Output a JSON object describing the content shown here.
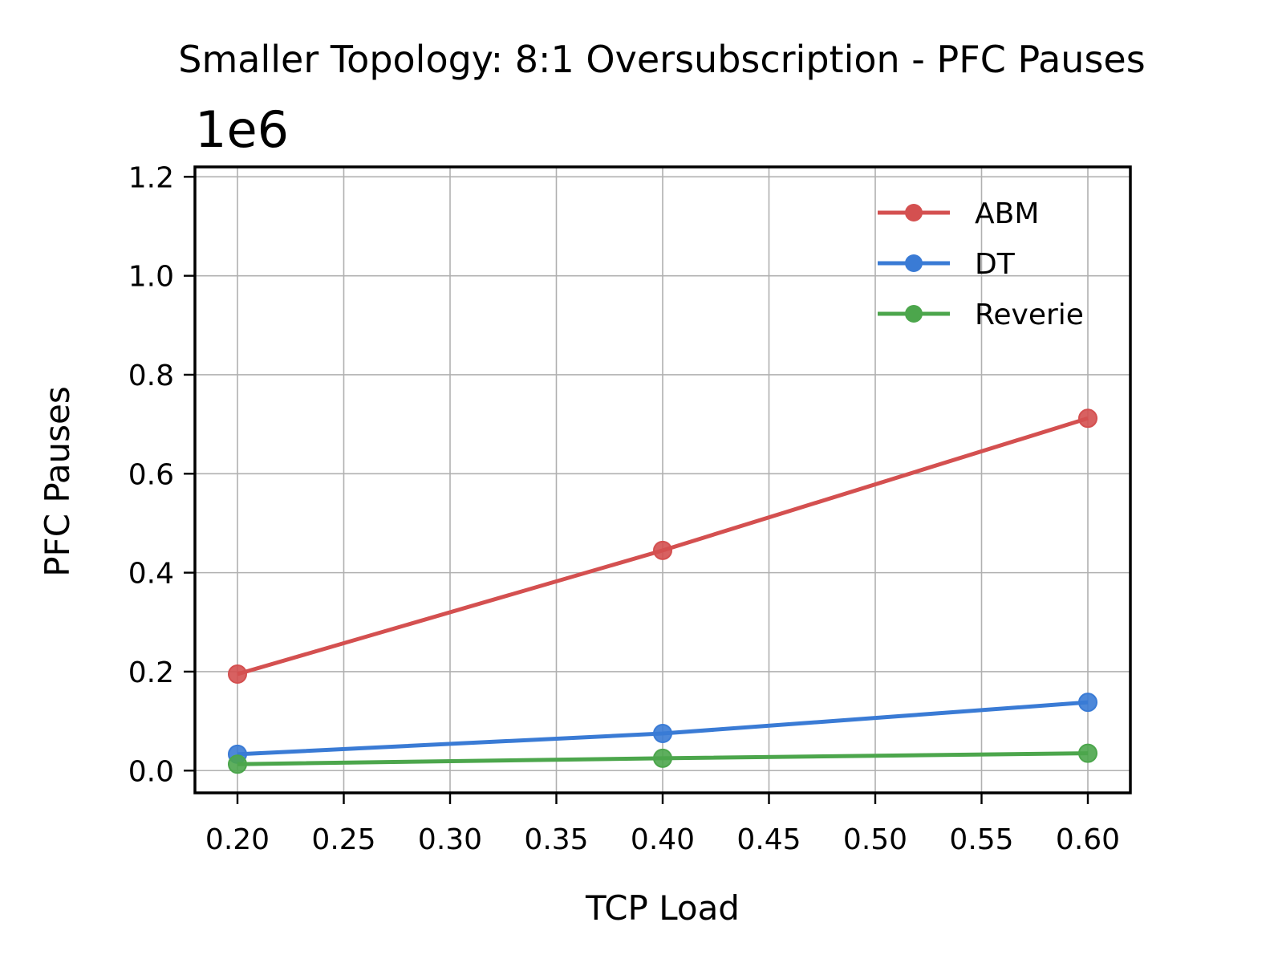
{
  "chart_data": {
    "type": "line",
    "title": "Smaller Topology: 8:1 Oversubscription - PFC Pauses",
    "xlabel": "TCP Load",
    "ylabel": "PFC Pauses",
    "y_offset_label": "1e6",
    "x": [
      0.2,
      0.4,
      0.6
    ],
    "xlim": [
      0.18,
      0.62
    ],
    "ylim": [
      -0.045,
      1.22
    ],
    "x_ticks": [
      0.2,
      0.25,
      0.3,
      0.35,
      0.4,
      0.45,
      0.5,
      0.55,
      0.6
    ],
    "x_tick_labels": [
      "0.20",
      "0.25",
      "0.30",
      "0.35",
      "0.40",
      "0.45",
      "0.50",
      "0.55",
      "0.60"
    ],
    "y_ticks": [
      0.0,
      0.2,
      0.4,
      0.6,
      0.8,
      1.0,
      1.2
    ],
    "y_tick_labels": [
      "0.0",
      "0.2",
      "0.4",
      "0.6",
      "0.8",
      "1.0",
      "1.2"
    ],
    "grid": true,
    "legend_position": "top-right",
    "series": [
      {
        "name": "ABM",
        "color": "#d45050",
        "values": [
          0.195,
          0.445,
          0.712
        ]
      },
      {
        "name": "DT",
        "color": "#3a7bd5",
        "values": [
          0.033,
          0.075,
          0.138
        ]
      },
      {
        "name": "Reverie",
        "color": "#4ca64c",
        "values": [
          0.013,
          0.025,
          0.035
        ]
      }
    ]
  }
}
